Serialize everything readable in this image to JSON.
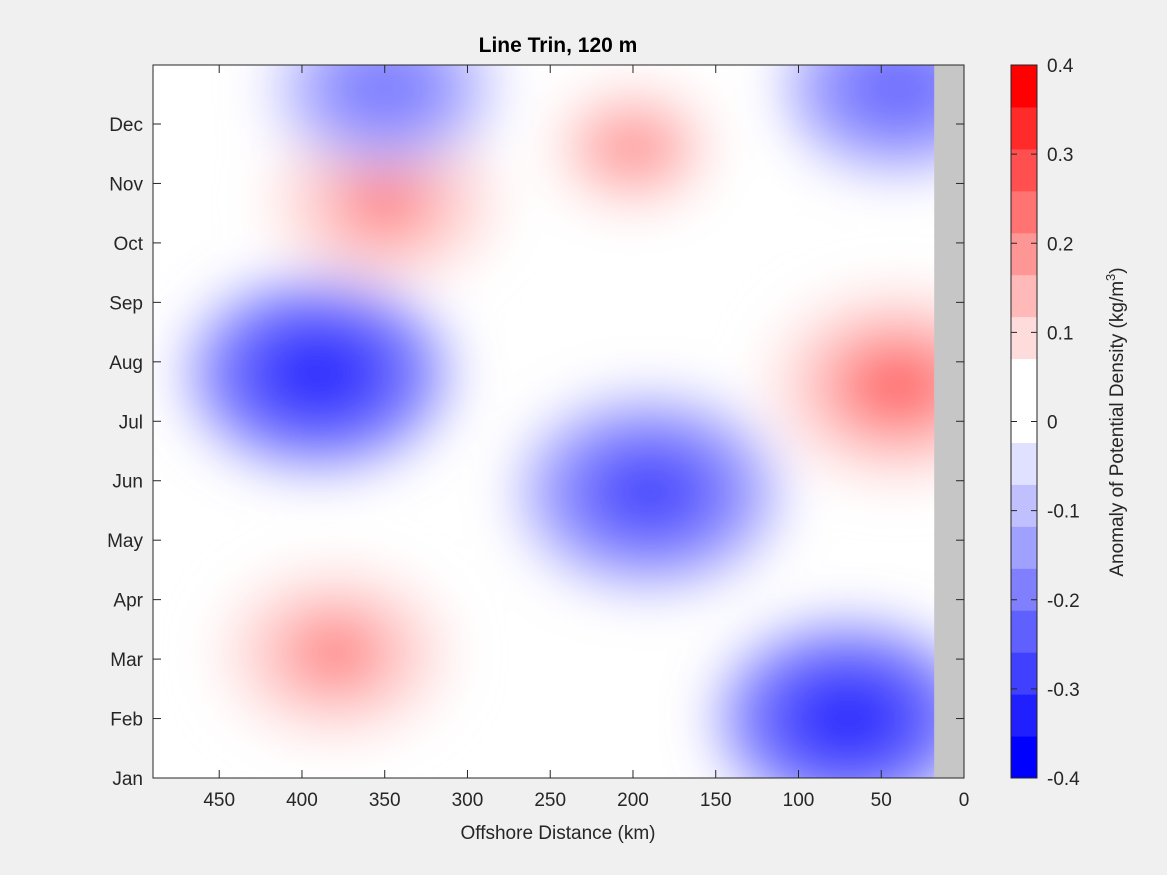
{
  "chart_data": {
    "type": "heatmap",
    "title": "Line Trin, 120 m",
    "xlabel": "Offshore Distance (km)",
    "ylabel": "",
    "x_ticks": [
      450,
      400,
      350,
      300,
      250,
      200,
      150,
      100,
      50,
      0
    ],
    "xlim": [
      490,
      0
    ],
    "x_reversed": true,
    "y_ticks": [
      "Jan",
      "Feb",
      "Mar",
      "Apr",
      "May",
      "Jun",
      "Jul",
      "Aug",
      "Sep",
      "Oct",
      "Nov",
      "Dec"
    ],
    "colorbar": {
      "label": "Anomaly of Potential Density (kg/m³)",
      "label_main": "Anomaly of Potential Density (kg/m",
      "label_sup": "3",
      "label_end": ")",
      "tick_labels": [
        "0.4",
        "0.3",
        "0.2",
        "0.1",
        "0",
        "-0.1",
        "-0.2",
        "-0.3",
        "-0.4"
      ],
      "clim": [
        -0.4,
        0.4
      ],
      "levels": [
        -0.4,
        -0.35,
        -0.3,
        -0.25,
        -0.2,
        -0.15,
        -0.1,
        -0.05,
        0,
        0.05,
        0.1,
        0.15,
        0.2,
        0.25,
        0.3,
        0.35,
        0.4
      ],
      "colors": [
        "#0000ff",
        "#2020ff",
        "#4040ff",
        "#6060ff",
        "#8080ff",
        "#a0a0ff",
        "#c0c0ff",
        "#e0e0ff",
        "#ffffff",
        "#ffffff",
        "#ffdcdc",
        "#ffb9b9",
        "#ff9696",
        "#ff7373",
        "#ff4f4f",
        "#ff2a2a",
        "#ff0000"
      ]
    },
    "no_data_color": "#c6c6c6",
    "no_data_range_km": [
      0,
      18
    ],
    "features": [
      {
        "name": "positive-anomaly-nearshore-summer",
        "x_km": 40,
        "month": 6.6,
        "value": 0.3
      },
      {
        "name": "positive-anomaly-autumn-offshore",
        "x_km": 350,
        "month": 9.7,
        "value": 0.25
      },
      {
        "name": "positive-anomaly-late-autumn-mid",
        "x_km": 200,
        "month": 10.6,
        "value": 0.2
      },
      {
        "name": "positive-anomaly-winter-spring",
        "x_km": 380,
        "month": 2.1,
        "value": 0.25
      },
      {
        "name": "negative-anomaly-summer-offshore",
        "x_km": 390,
        "month": 6.8,
        "value": -0.35
      },
      {
        "name": "negative-anomaly-june-mid",
        "x_km": 190,
        "month": 4.8,
        "value": -0.3
      },
      {
        "name": "negative-anomaly-winter-nearshore",
        "x_km": 70,
        "month": 1.0,
        "value": -0.35
      },
      {
        "name": "negative-anomaly-december-nearshore",
        "x_km": 40,
        "month": 11.6,
        "value": -0.25
      },
      {
        "name": "negative-anomaly-december-offshore",
        "x_km": 350,
        "month": 11.6,
        "value": -0.2
      }
    ]
  }
}
